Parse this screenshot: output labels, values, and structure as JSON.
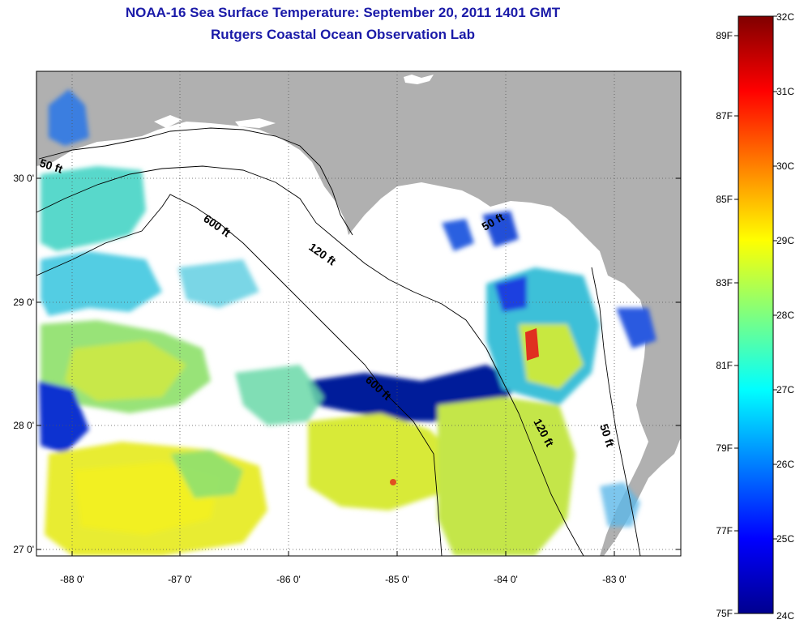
{
  "title": "NOAA-16 Sea Surface Temperature:  September 20, 2011 1401 GMT",
  "subtitle": "Rutgers Coastal Ocean Observation Lab",
  "map": {
    "lon_ticks": [
      "-88 0'",
      "-87 0'",
      "-86 0'",
      "-85 0'",
      "-84 0'",
      "-83 0'"
    ],
    "lat_ticks": [
      "30 0'",
      "29 0'",
      "28 0'",
      "27 0'"
    ],
    "depth_labels": [
      "50 ft",
      "600 ft",
      "120 ft",
      "50 ft",
      "600 ft",
      "120 ft",
      "50 ft"
    ],
    "colors": {
      "land": "#b0b0b0",
      "water_nodata": "#ffffff"
    }
  },
  "colorbar": {
    "celsius": [
      "32C",
      "31C",
      "30C",
      "29C",
      "28C",
      "27C",
      "26C",
      "25C",
      "24C"
    ],
    "fahrenheit": [
      "89F",
      "87F",
      "85F",
      "83F",
      "81F",
      "79F",
      "77F",
      "75F"
    ]
  }
}
